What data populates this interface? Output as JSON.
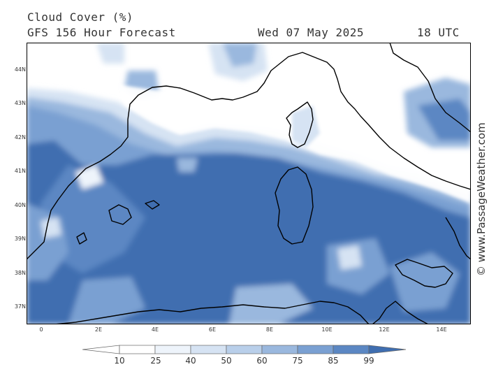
{
  "header": {
    "title": "Cloud Cover (%)",
    "subtitle": "GFS 156 Hour Forecast",
    "date": "Wed 07 May 2025",
    "time": "18 UTC"
  },
  "map": {
    "latitude_labels": [
      "44N",
      "43N",
      "42N",
      "41N",
      "40N",
      "39N",
      "38N",
      "37N"
    ],
    "longitude_labels": [
      "0",
      "2E",
      "4E",
      "6E",
      "8E",
      "10E",
      "12E",
      "14E"
    ]
  },
  "colorbar": {
    "labels": [
      "10",
      "25",
      "40",
      "50",
      "60",
      "75",
      "85",
      "99"
    ],
    "colors": [
      "#ffffff",
      "#eef4fb",
      "#d6e3f3",
      "#b9cfea",
      "#9ab8de",
      "#7aa0d2",
      "#5b87c3",
      "#3f6eb0"
    ]
  },
  "credit": "© www.PassageWeather.com"
}
